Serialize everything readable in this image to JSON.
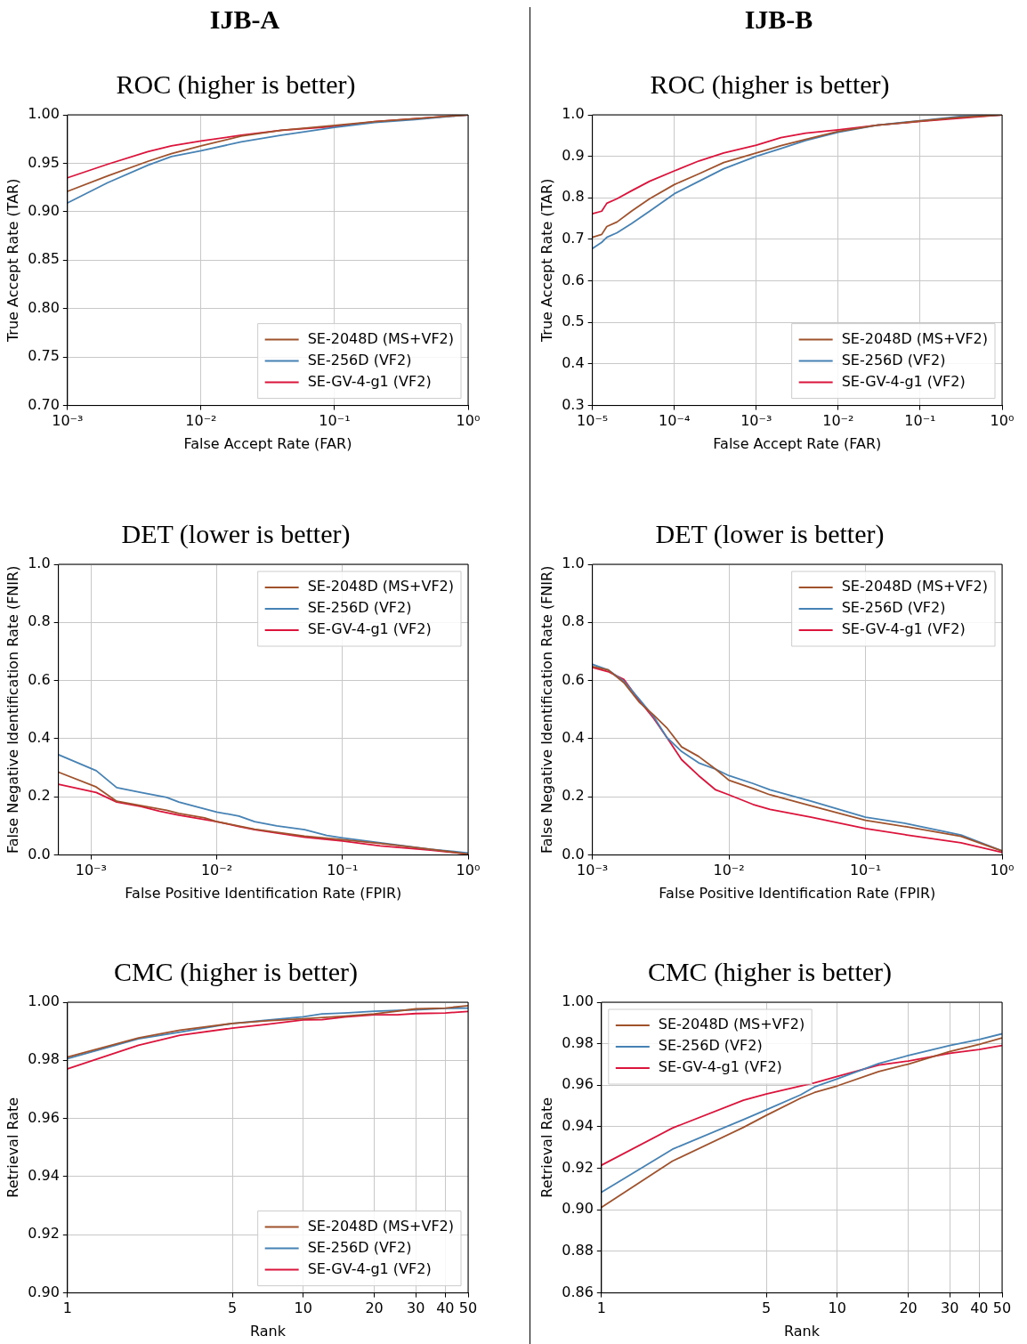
{
  "chart_data": [
    {
      "type": "line",
      "subtitle": "IJB-A",
      "title": "ROC (higher is better)",
      "xlabel": "False Accept Rate (FAR)",
      "ylabel": "True Accept Rate (TAR)",
      "log": "x",
      "grid": true,
      "legend": "bottom right",
      "marker": "none",
      "x": [
        0.001,
        0.002,
        0.004,
        0.006,
        0.01,
        0.02,
        0.04,
        0.1,
        0.2,
        0.4,
        1
      ],
      "xlim": [
        0.001,
        1
      ],
      "xticks": [
        {
          "value": 0.001,
          "label": "10⁻³"
        },
        {
          "value": 0.01,
          "label": "10⁻²"
        },
        {
          "value": 0.1,
          "label": "10⁻¹"
        },
        {
          "value": 1,
          "label": "10⁰"
        }
      ],
      "ylim": [
        0.7,
        1.0
      ],
      "yticks": [
        {
          "value": 0.7,
          "label": "0.70"
        },
        {
          "value": 0.75,
          "label": "0.75"
        },
        {
          "value": 0.8,
          "label": "0.80"
        },
        {
          "value": 0.85,
          "label": "0.85"
        },
        {
          "value": 0.9,
          "label": "0.90"
        },
        {
          "value": 0.95,
          "label": "0.95"
        },
        {
          "value": 1.0,
          "label": "1.00"
        }
      ],
      "series": [
        {
          "name": "SE-2048D (MS+VF2)",
          "color": "#a0522d",
          "values": [
            0.921,
            0.937,
            0.952,
            0.96,
            0.968,
            0.978,
            0.984,
            0.989,
            0.993,
            0.996,
            1.0
          ]
        },
        {
          "name": "SE-256D (VF2)",
          "color": "#4682b4",
          "values": [
            0.909,
            0.93,
            0.948,
            0.957,
            0.963,
            0.972,
            0.979,
            0.987,
            0.992,
            0.995,
            1.0
          ]
        },
        {
          "name": "SE-GV-4-g1 (VF2)",
          "color": "#dc143c",
          "values": [
            0.935,
            0.949,
            0.962,
            0.968,
            0.973,
            0.979,
            0.984,
            0.988,
            0.993,
            0.996,
            1.0
          ]
        }
      ]
    },
    {
      "type": "line",
      "subtitle": "IJB-B",
      "title": "ROC (higher is better)",
      "xlabel": "False Accept Rate (FAR)",
      "ylabel": "True Accept Rate (TAR)",
      "log": "x",
      "grid": true,
      "legend": "bottom right",
      "marker": "none",
      "x": [
        1e-05,
        1.3e-05,
        1.5e-05,
        2e-05,
        3e-05,
        5e-05,
        0.0001,
        0.0002,
        0.0004,
        0.001,
        0.002,
        0.004,
        0.01,
        0.03,
        0.1,
        0.3,
        1
      ],
      "xlim": [
        1e-05,
        1
      ],
      "xticks": [
        {
          "value": 1e-05,
          "label": "10⁻⁵"
        },
        {
          "value": 0.0001,
          "label": "10⁻⁴"
        },
        {
          "value": 0.001,
          "label": "10⁻³"
        },
        {
          "value": 0.01,
          "label": "10⁻²"
        },
        {
          "value": 0.1,
          "label": "10⁻¹"
        },
        {
          "value": 1,
          "label": "10⁰"
        }
      ],
      "ylim": [
        0.3,
        1.0
      ],
      "yticks": [
        0.3,
        0.4,
        0.5,
        0.6,
        0.7,
        0.8,
        0.9,
        {
          "value": 1.0,
          "label": "1.0"
        }
      ],
      "series": [
        {
          "name": "SE-2048D (MS+VF2)",
          "color": "#a0522d",
          "values": [
            0.705,
            0.712,
            0.731,
            0.742,
            0.768,
            0.798,
            0.832,
            0.858,
            0.885,
            0.908,
            0.926,
            0.941,
            0.96,
            0.975,
            0.985,
            0.994,
            1.0
          ]
        },
        {
          "name": "SE-256D (VF2)",
          "color": "#4682b4",
          "values": [
            0.678,
            0.693,
            0.705,
            0.716,
            0.738,
            0.768,
            0.81,
            0.84,
            0.87,
            0.9,
            0.919,
            0.938,
            0.958,
            0.975,
            0.986,
            0.996,
            1.0
          ]
        },
        {
          "name": "SE-GV-4-g1 (VF2)",
          "color": "#dc143c",
          "values": [
            0.762,
            0.768,
            0.787,
            0.798,
            0.817,
            0.84,
            0.865,
            0.889,
            0.908,
            0.927,
            0.945,
            0.956,
            0.964,
            0.975,
            0.984,
            0.992,
            1.0
          ]
        }
      ]
    },
    {
      "type": "line",
      "title": "DET (lower is better)",
      "xlabel": "False Positive Identification Rate (FPIR)",
      "ylabel": "False Negative Identification Rate (FNIR)",
      "log": "x",
      "grid": true,
      "legend": "top right",
      "marker": "none",
      "xlim": [
        0.00055,
        1
      ],
      "xticks": [
        {
          "value": 0.001,
          "label": "10⁻³"
        },
        {
          "value": 0.01,
          "label": "10⁻²"
        },
        {
          "value": 0.1,
          "label": "10⁻¹"
        },
        {
          "value": 1,
          "label": "10⁰"
        }
      ],
      "ylim": [
        0,
        1.0
      ],
      "yticks": [
        {
          "value": 0,
          "label": "0.0"
        },
        0.2,
        0.4,
        0.6,
        0.8,
        {
          "value": 1.0,
          "label": "1.0"
        }
      ],
      "series": [
        {
          "name": "SE-2048D (MS+VF2)",
          "color": "#a0522d",
          "x": [
            0.00055,
            0.0011,
            0.0016,
            0.0025,
            0.004,
            0.005,
            0.008,
            0.01,
            0.02,
            0.05,
            0.1,
            0.2,
            0.5,
            1
          ],
          "values": [
            0.285,
            0.234,
            0.185,
            0.17,
            0.154,
            0.143,
            0.128,
            0.115,
            0.089,
            0.065,
            0.053,
            0.04,
            0.02,
            0.003
          ]
        },
        {
          "name": "SE-256D (VF2)",
          "color": "#4682b4",
          "x": [
            0.00055,
            0.0011,
            0.0016,
            0.0025,
            0.004,
            0.005,
            0.007,
            0.01,
            0.015,
            0.02,
            0.03,
            0.05,
            0.075,
            0.1,
            0.2,
            0.5,
            1
          ],
          "values": [
            0.345,
            0.29,
            0.232,
            0.215,
            0.198,
            0.182,
            0.165,
            0.148,
            0.134,
            0.115,
            0.1,
            0.087,
            0.067,
            0.059,
            0.042,
            0.02,
            0.007
          ]
        },
        {
          "name": "SE-GV-4-g1 (VF2)",
          "color": "#dc143c",
          "x": [
            0.00055,
            0.0011,
            0.0016,
            0.0025,
            0.0035,
            0.005,
            0.007,
            0.01,
            0.015,
            0.02,
            0.05,
            0.1,
            0.2,
            0.5,
            1
          ],
          "values": [
            0.243,
            0.215,
            0.182,
            0.167,
            0.151,
            0.137,
            0.126,
            0.115,
            0.098,
            0.087,
            0.061,
            0.048,
            0.031,
            0.017,
            0.003
          ]
        }
      ]
    },
    {
      "type": "line",
      "title": "DET (lower is better)",
      "xlabel": "False Positive Identification Rate (FPIR)",
      "ylabel": "False Negative Identification Rate (FNIR)",
      "log": "x",
      "grid": true,
      "legend": "top right",
      "marker": "none",
      "x": [
        0.001,
        0.0013,
        0.0017,
        0.0022,
        0.0028,
        0.0035,
        0.0045,
        0.006,
        0.008,
        0.01,
        0.015,
        0.02,
        0.04,
        0.1,
        0.2,
        0.5,
        1
      ],
      "xlim": [
        0.001,
        1
      ],
      "xticks": [
        {
          "value": 0.001,
          "label": "10⁻³"
        },
        {
          "value": 0.01,
          "label": "10⁻²"
        },
        {
          "value": 0.1,
          "label": "10⁻¹"
        },
        {
          "value": 1,
          "label": "10⁰"
        }
      ],
      "ylim": [
        0,
        1.0
      ],
      "yticks": [
        {
          "value": 0,
          "label": "0.0"
        },
        0.2,
        0.4,
        0.6,
        0.8,
        {
          "value": 1.0,
          "label": "1.0"
        }
      ],
      "series": [
        {
          "name": "SE-2048D (MS+VF2)",
          "color": "#a0522d",
          "values": [
            0.648,
            0.637,
            0.593,
            0.526,
            0.482,
            0.438,
            0.372,
            0.339,
            0.295,
            0.257,
            0.229,
            0.207,
            0.169,
            0.119,
            0.097,
            0.064,
            0.014
          ]
        },
        {
          "name": "SE-256D (VF2)",
          "color": "#4682b4",
          "values": [
            0.656,
            0.637,
            0.598,
            0.537,
            0.477,
            0.405,
            0.356,
            0.317,
            0.295,
            0.273,
            0.246,
            0.224,
            0.185,
            0.13,
            0.108,
            0.069,
            0.014
          ]
        },
        {
          "name": "SE-GV-4-g1 (VF2)",
          "color": "#dc143c",
          "values": [
            0.645,
            0.631,
            0.604,
            0.532,
            0.471,
            0.405,
            0.328,
            0.273,
            0.224,
            0.207,
            0.174,
            0.157,
            0.13,
            0.091,
            0.069,
            0.042,
            0.009
          ]
        }
      ]
    },
    {
      "type": "line",
      "title": "CMC (higher is better)",
      "xlabel": "Rank",
      "ylabel": "Retrieval Rate",
      "log": "x",
      "grid": true,
      "legend": "bottom right",
      "marker": "none",
      "xlim": [
        1,
        50
      ],
      "xticks": [
        1,
        5,
        10,
        20,
        30,
        40,
        50
      ],
      "ylim": [
        0.9,
        1.0
      ],
      "yticks": [
        {
          "value": 0.9,
          "label": "0.90"
        },
        {
          "value": 0.92,
          "label": "0.92"
        },
        {
          "value": 0.94,
          "label": "0.94"
        },
        {
          "value": 0.96,
          "label": "0.96"
        },
        {
          "value": 0.98,
          "label": "0.98"
        },
        {
          "value": 1.0,
          "label": "1.00"
        }
      ],
      "series": [
        {
          "name": "SE-2048D (MS+VF2)",
          "color": "#a0522d",
          "x": [
            1,
            2,
            3,
            5,
            7,
            10,
            15,
            20,
            30,
            40,
            50
          ],
          "values": [
            0.9811,
            0.9877,
            0.9904,
            0.9927,
            0.9936,
            0.9943,
            0.9952,
            0.996,
            0.9977,
            0.998,
            0.9988
          ]
        },
        {
          "name": "SE-256D (VF2)",
          "color": "#4682b4",
          "x": [
            1,
            2,
            3,
            5,
            7,
            10,
            12,
            15,
            20,
            30,
            40,
            50
          ],
          "values": [
            0.9806,
            0.9874,
            0.9897,
            0.9927,
            0.9938,
            0.995,
            0.996,
            0.9963,
            0.9969,
            0.9974,
            0.9979,
            0.998
          ]
        },
        {
          "name": "SE-GV-4-g1 (VF2)",
          "color": "#dc143c",
          "x": [
            1,
            2,
            3,
            5,
            7,
            10,
            12,
            15,
            20,
            25,
            30,
            40,
            50
          ],
          "values": [
            0.9771,
            0.9852,
            0.9886,
            0.9911,
            0.9924,
            0.9939,
            0.994,
            0.9949,
            0.9957,
            0.9957,
            0.9961,
            0.9963,
            0.9968
          ]
        }
      ]
    },
    {
      "type": "line",
      "title": "CMC (higher is better)",
      "xlabel": "Rank",
      "ylabel": "Retrieval Rate",
      "log": "x",
      "grid": true,
      "legend": "top left",
      "marker": "none",
      "x": [
        1,
        2,
        4,
        5,
        7,
        8,
        10,
        15,
        20,
        30,
        40,
        50
      ],
      "xlim": [
        1,
        50
      ],
      "xticks": [
        1,
        5,
        10,
        20,
        30,
        40,
        50
      ],
      "ylim": [
        0.86,
        1.0
      ],
      "yticks": [
        {
          "value": 0.86,
          "label": "0.86"
        },
        {
          "value": 0.88,
          "label": "0.88"
        },
        {
          "value": 0.9,
          "label": "0.90"
        },
        {
          "value": 0.92,
          "label": "0.92"
        },
        {
          "value": 0.94,
          "label": "0.94"
        },
        {
          "value": 0.96,
          "label": "0.96"
        },
        {
          "value": 0.98,
          "label": "0.98"
        },
        {
          "value": 1.0,
          "label": "1.00"
        }
      ],
      "series": [
        {
          "name": "SE-2048D (MS+VF2)",
          "color": "#a0522d",
          "values": [
            0.9012,
            0.9235,
            0.9397,
            0.9455,
            0.9538,
            0.9565,
            0.9597,
            0.9666,
            0.9702,
            0.9763,
            0.9797,
            0.9828
          ]
        },
        {
          "name": "SE-256D (VF2)",
          "color": "#4682b4",
          "values": [
            0.9085,
            0.9292,
            0.9435,
            0.9482,
            0.9554,
            0.9592,
            0.9631,
            0.9705,
            0.9743,
            0.9792,
            0.982,
            0.9848
          ]
        },
        {
          "name": "SE-GV-4-g1 (VF2)",
          "color": "#dc143c",
          "values": [
            0.9215,
            0.9394,
            0.9528,
            0.9558,
            0.9597,
            0.9612,
            0.9643,
            0.9697,
            0.9717,
            0.9754,
            0.9772,
            0.9792
          ]
        }
      ]
    }
  ]
}
